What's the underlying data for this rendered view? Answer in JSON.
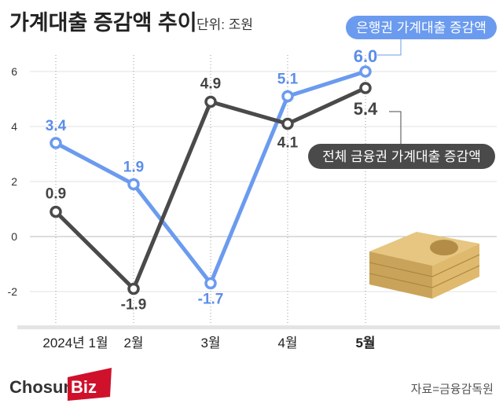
{
  "title": "가계대출 증감액 추이",
  "unit": "단위: 조원",
  "source": "자료=금융감독원",
  "logo": "ChosunBiz",
  "chart_data": {
    "type": "line",
    "categories": [
      "2024년 1월",
      "2월",
      "3월",
      "4월",
      "5월"
    ],
    "ylim": [
      -3.2,
      7
    ],
    "yticks": [
      "6",
      "4",
      "2",
      "0",
      "-2"
    ],
    "series": [
      {
        "name": "은행권 가계대출 증감액",
        "color": "#6b9bef",
        "values": [
          3.4,
          1.9,
          -1.7,
          5.1,
          6.0
        ],
        "labels": [
          "3.4",
          "1.9",
          "-1.7",
          "5.1",
          "6.0"
        ]
      },
      {
        "name": "전체 금융권 가계대출 증감액",
        "color": "#4a4a4a",
        "values": [
          0.9,
          -1.9,
          4.9,
          4.1,
          5.4
        ],
        "labels": [
          "0.9",
          "-1.9",
          "4.9",
          "4.1",
          "5.4"
        ]
      }
    ]
  }
}
